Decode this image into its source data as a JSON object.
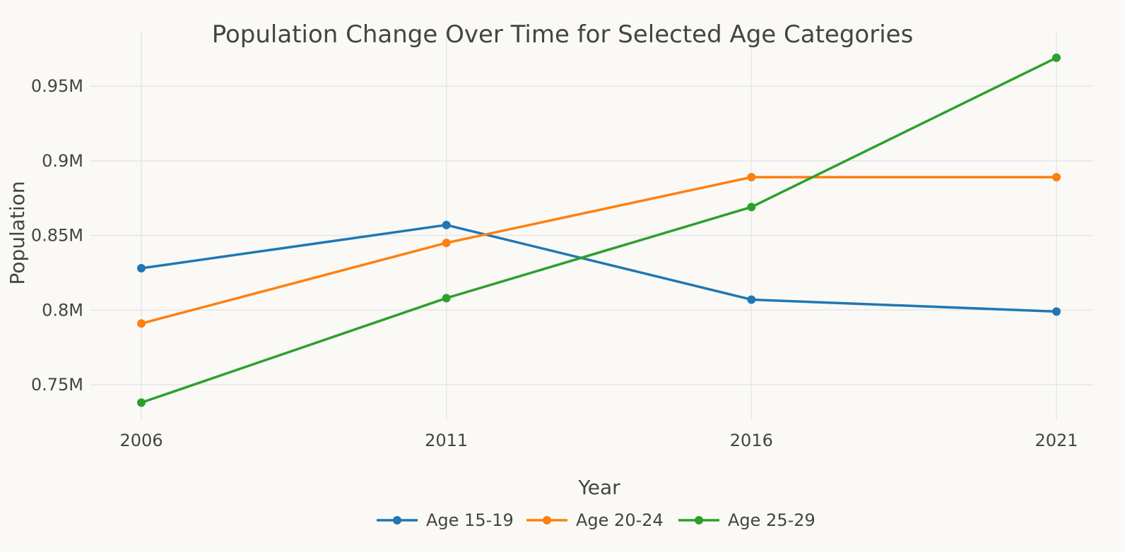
{
  "chart_data": {
    "type": "line",
    "title": "Population Change Over Time for Selected Age Categories",
    "xlabel": "Year",
    "ylabel": "Population",
    "x": [
      2006,
      2011,
      2016,
      2021
    ],
    "x_tick_labels": [
      "2006",
      "2011",
      "2016",
      "2021"
    ],
    "y_tick_values": [
      750000,
      800000,
      850000,
      900000,
      950000
    ],
    "y_tick_labels": [
      "0.75M",
      "0.8M",
      "0.85M",
      "0.9M",
      "0.95M"
    ],
    "ylim": [
      725000,
      985000
    ],
    "grid": true,
    "legend_position": "bottom",
    "series": [
      {
        "name": "Age 15-19",
        "color": "#1f77b4",
        "values": [
          828000,
          857000,
          807000,
          799000
        ]
      },
      {
        "name": "Age 20-24",
        "color": "#ff7f0e",
        "values": [
          791000,
          845000,
          889000,
          889000
        ]
      },
      {
        "name": "Age 25-29",
        "color": "#2ca02c",
        "values": [
          738000,
          808000,
          869000,
          969000
        ]
      }
    ]
  }
}
